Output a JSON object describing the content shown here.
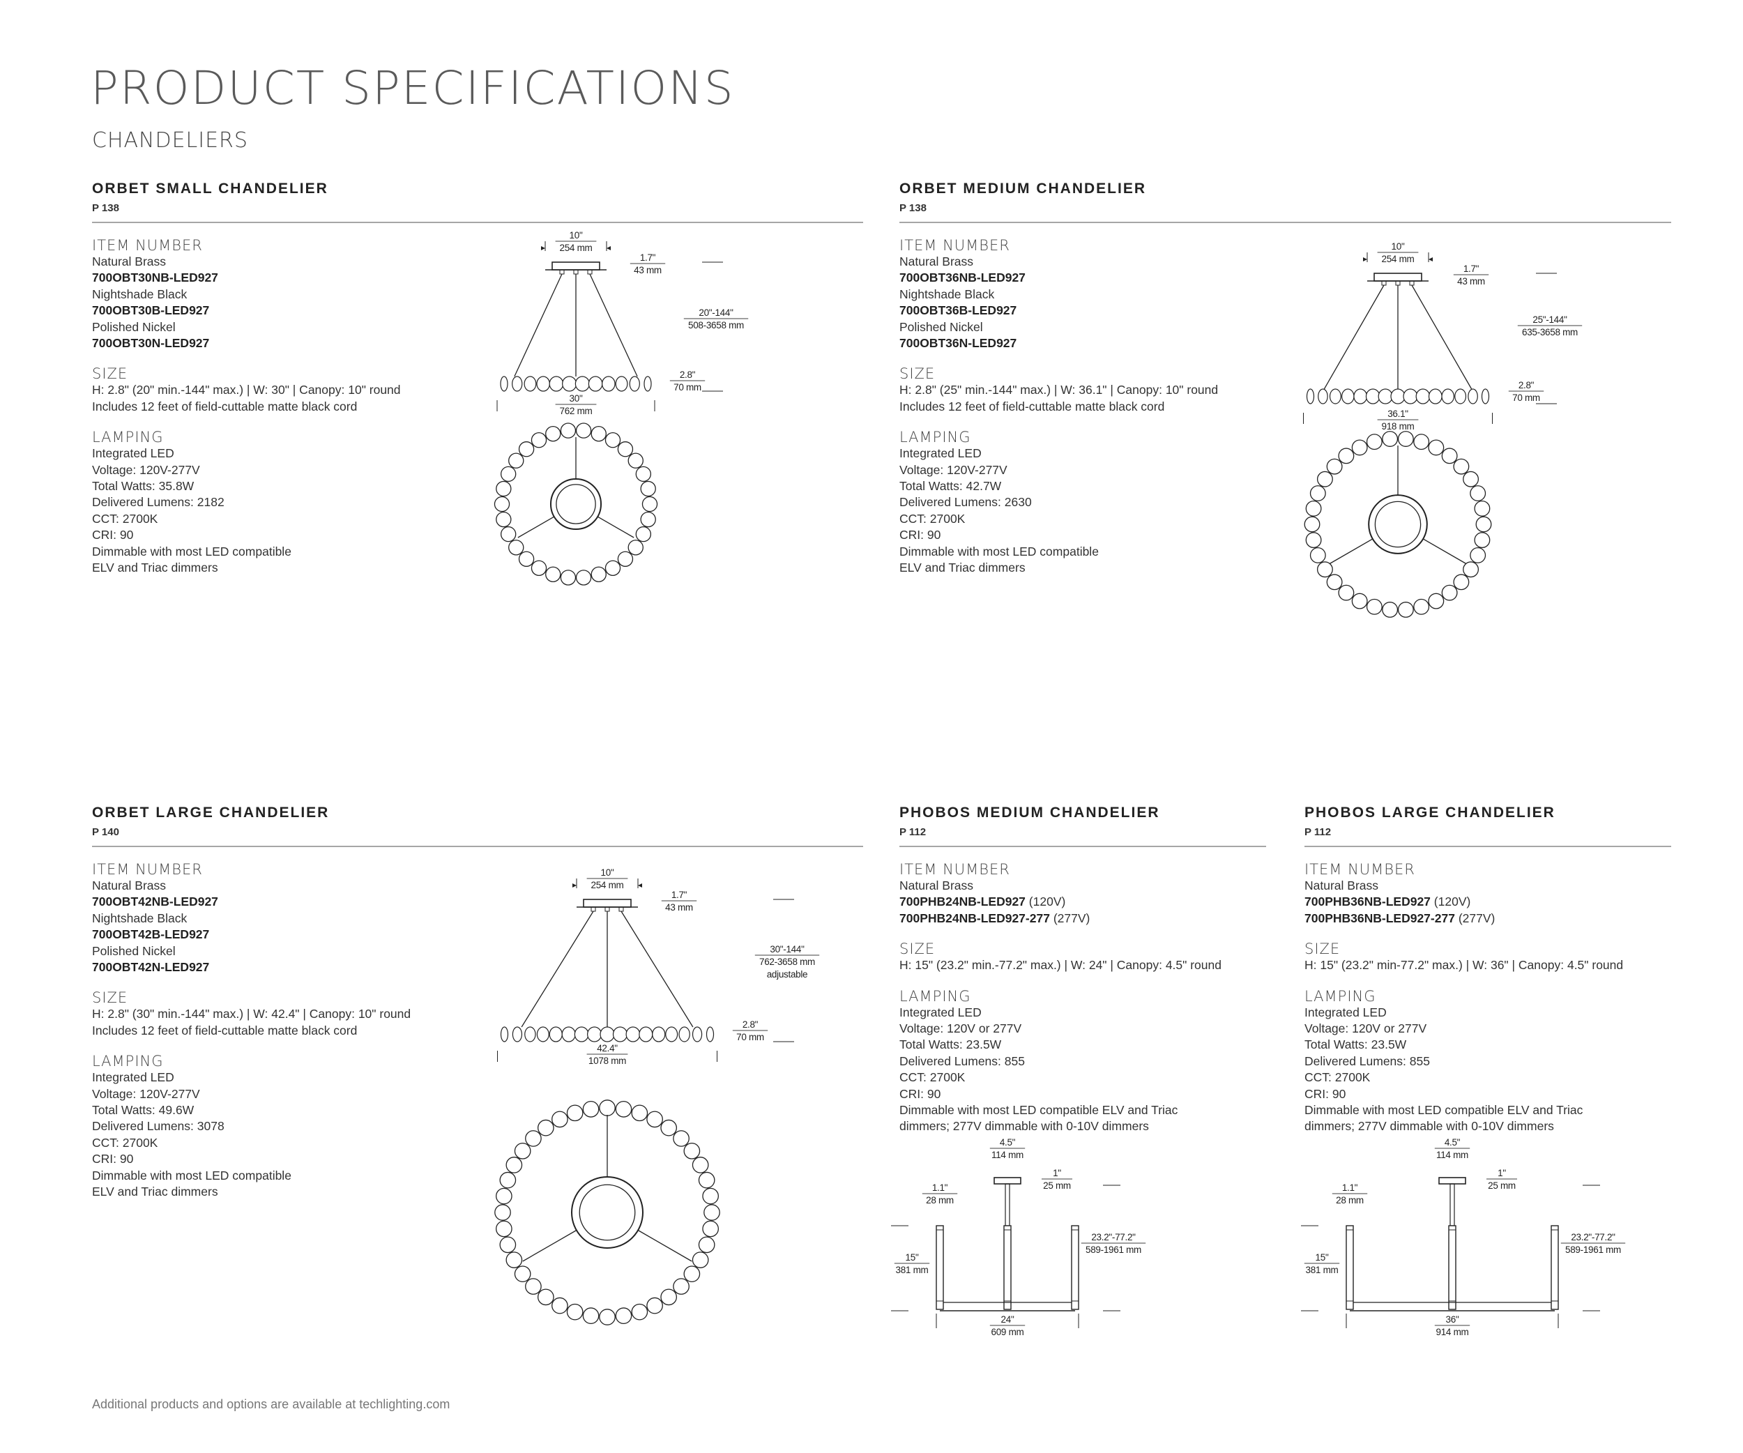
{
  "page_title": "PRODUCT SPECIFICATIONS",
  "section": "CHANDELIERS",
  "footer": "Additional products and options are available at techlighting.com",
  "products": [
    {
      "title": "ORBET SMALL CHANDELIER",
      "page": "P 138",
      "item_heading": "ITEM NUMBER",
      "item_lines": [
        {
          "text": "Natural Brass"
        },
        {
          "text": "700OBT30NB-LED927",
          "bold": true
        },
        {
          "text": "Nightshade Black"
        },
        {
          "text": "700OBT30B-LED927",
          "bold": true
        },
        {
          "text": "Polished Nickel"
        },
        {
          "text": "700OBT30N-LED927",
          "bold": true
        }
      ],
      "size_heading": "SIZE",
      "size_lines": [
        "H: 2.8\" (20\" min.-144\" max.) | W: 30\" | Canopy: 10\" round",
        "Includes 12 feet of field-cuttable matte black cord"
      ],
      "lamping_heading": "LAMPING",
      "lamping_lines": [
        "Integrated LED",
        "Voltage: 120V-277V",
        "Total Watts: 35.8W",
        "Delivered Lumens: 2182",
        "CCT: 2700K",
        "CRI: 90",
        "Dimmable with most LED compatible",
        "ELV and Triac dimmers"
      ],
      "drawing": {
        "type": "orbet",
        "dims": {
          "canopy_width": [
            "10\"",
            "254 mm"
          ],
          "canopy_height": [
            "1.7\"",
            "43 mm"
          ],
          "overall_height": [
            "20\"-144\"",
            "508-3658 mm"
          ],
          "ring_height": [
            "2.8\"",
            "70 mm"
          ],
          "ring_width": [
            "30\"",
            "762 mm"
          ]
        }
      }
    },
    {
      "title": "ORBET MEDIUM CHANDELIER",
      "page": "P 138",
      "item_heading": "ITEM NUMBER",
      "item_lines": [
        {
          "text": "Natural Brass"
        },
        {
          "text": "700OBT36NB-LED927",
          "bold": true
        },
        {
          "text": "Nightshade Black"
        },
        {
          "text": "700OBT36B-LED927",
          "bold": true
        },
        {
          "text": "Polished Nickel"
        },
        {
          "text": "700OBT36N-LED927",
          "bold": true
        }
      ],
      "size_heading": "SIZE",
      "size_lines": [
        "H: 2.8\" (25\" min.-144\" max.) | W: 36.1\" | Canopy: 10\" round",
        "Includes 12 feet of field-cuttable matte black cord"
      ],
      "lamping_heading": "LAMPING",
      "lamping_lines": [
        "Integrated LED",
        "Voltage: 120V-277V",
        "Total Watts: 42.7W",
        "Delivered Lumens: 2630",
        "CCT: 2700K",
        "CRI: 90",
        "Dimmable with most LED compatible",
        "ELV and Triac dimmers"
      ],
      "drawing": {
        "type": "orbet",
        "dims": {
          "canopy_width": [
            "10\"",
            "254 mm"
          ],
          "canopy_height": [
            "1.7\"",
            "43 mm"
          ],
          "overall_height": [
            "25\"-144\"",
            "635-3658 mm"
          ],
          "ring_height": [
            "2.8\"",
            "70 mm"
          ],
          "ring_width": [
            "36.1\"",
            "918 mm"
          ]
        }
      }
    },
    {
      "title": "ORBET LARGE CHANDELIER",
      "page": "P 140",
      "item_heading": "ITEM NUMBER",
      "item_lines": [
        {
          "text": "Natural Brass"
        },
        {
          "text": "700OBT42NB-LED927",
          "bold": true
        },
        {
          "text": "Nightshade Black"
        },
        {
          "text": "700OBT42B-LED927",
          "bold": true
        },
        {
          "text": "Polished Nickel"
        },
        {
          "text": "700OBT42N-LED927",
          "bold": true
        }
      ],
      "size_heading": "SIZE",
      "size_lines": [
        "H: 2.8\" (30\" min.-144\" max.) | W: 42.4\" | Canopy: 10\" round",
        "Includes 12 feet of field-cuttable matte black cord"
      ],
      "lamping_heading": "LAMPING",
      "lamping_lines": [
        "Integrated LED",
        "Voltage: 120V-277V",
        "Total Watts: 49.6W",
        "Delivered Lumens: 3078",
        "CCT: 2700K",
        "CRI: 90",
        "Dimmable with most LED compatible",
        "ELV and Triac dimmers"
      ],
      "drawing": {
        "type": "orbet",
        "dims": {
          "canopy_width": [
            "10\"",
            "254 mm"
          ],
          "canopy_height": [
            "1.7\"",
            "43 mm"
          ],
          "overall_height": [
            "30\"-144\"",
            "762-3658 mm",
            "adjustable"
          ],
          "ring_height": [
            "2.8\"",
            "70 mm"
          ],
          "ring_width": [
            "42.4\"",
            "1078 mm"
          ]
        }
      }
    },
    {
      "title": "PHOBOS MEDIUM CHANDELIER",
      "page": "P 112",
      "item_heading": "ITEM NUMBER",
      "item_lines": [
        {
          "text": "Natural Brass"
        },
        {
          "text": "700PHB24NB-LED927",
          "bold": true,
          "note": "(120V)"
        },
        {
          "text": "700PHB24NB-LED927-277",
          "bold": true,
          "note": "(277V)"
        }
      ],
      "size_heading": "SIZE",
      "size_lines": [
        "H: 15\" (23.2\" min.-77.2\" max.) | W: 24\" | Canopy: 4.5\" round"
      ],
      "lamping_heading": "LAMPING",
      "lamping_lines": [
        "Integrated LED",
        "Voltage: 120V or 277V",
        "Total Watts: 23.5W",
        "Delivered Lumens: 855",
        "CCT: 2700K",
        "CRI: 90",
        "Dimmable with most LED compatible ELV and Triac",
        "dimmers; 277V dimmable with 0-10V dimmers"
      ],
      "drawing": {
        "type": "phobos",
        "dims": {
          "canopy_width": [
            "4.5\"",
            "114 mm"
          ],
          "canopy_height": [
            "1\"",
            "25 mm"
          ],
          "arm_width": [
            "1.1\"",
            "28 mm"
          ],
          "fixture_height": [
            "15\"",
            "381 mm"
          ],
          "overall_height": [
            "23.2\"-77.2\"",
            "589-1961 mm"
          ],
          "fixture_width": [
            "24\"",
            "609 mm"
          ]
        }
      }
    },
    {
      "title": "PHOBOS LARGE CHANDELIER",
      "page": "P 112",
      "item_heading": "ITEM NUMBER",
      "item_lines": [
        {
          "text": "Natural Brass"
        },
        {
          "text": "700PHB36NB-LED927",
          "bold": true,
          "note": "(120V)"
        },
        {
          "text": "700PHB36NB-LED927-277",
          "bold": true,
          "note": "(277V)"
        }
      ],
      "size_heading": "SIZE",
      "size_lines": [
        "H: 15\" (23.2\" min-77.2\" max.) | W: 36\" | Canopy: 4.5\" round"
      ],
      "lamping_heading": "LAMPING",
      "lamping_lines": [
        "Integrated LED",
        "Voltage: 120V or 277V",
        "Total Watts: 23.5W",
        "Delivered Lumens: 855",
        "CCT: 2700K",
        "CRI: 90",
        "Dimmable with most LED compatible ELV and Triac",
        "dimmers; 277V dimmable with 0-10V dimmers"
      ],
      "drawing": {
        "type": "phobos",
        "dims": {
          "canopy_width": [
            "4.5\"",
            "114 mm"
          ],
          "canopy_height": [
            "1\"",
            "25 mm"
          ],
          "arm_width": [
            "1.1\"",
            "28 mm"
          ],
          "fixture_height": [
            "15\"",
            "381 mm"
          ],
          "overall_height": [
            "23.2\"-77.2\"",
            "589-1961 mm"
          ],
          "fixture_width": [
            "36\"",
            "914 mm"
          ]
        }
      }
    }
  ]
}
